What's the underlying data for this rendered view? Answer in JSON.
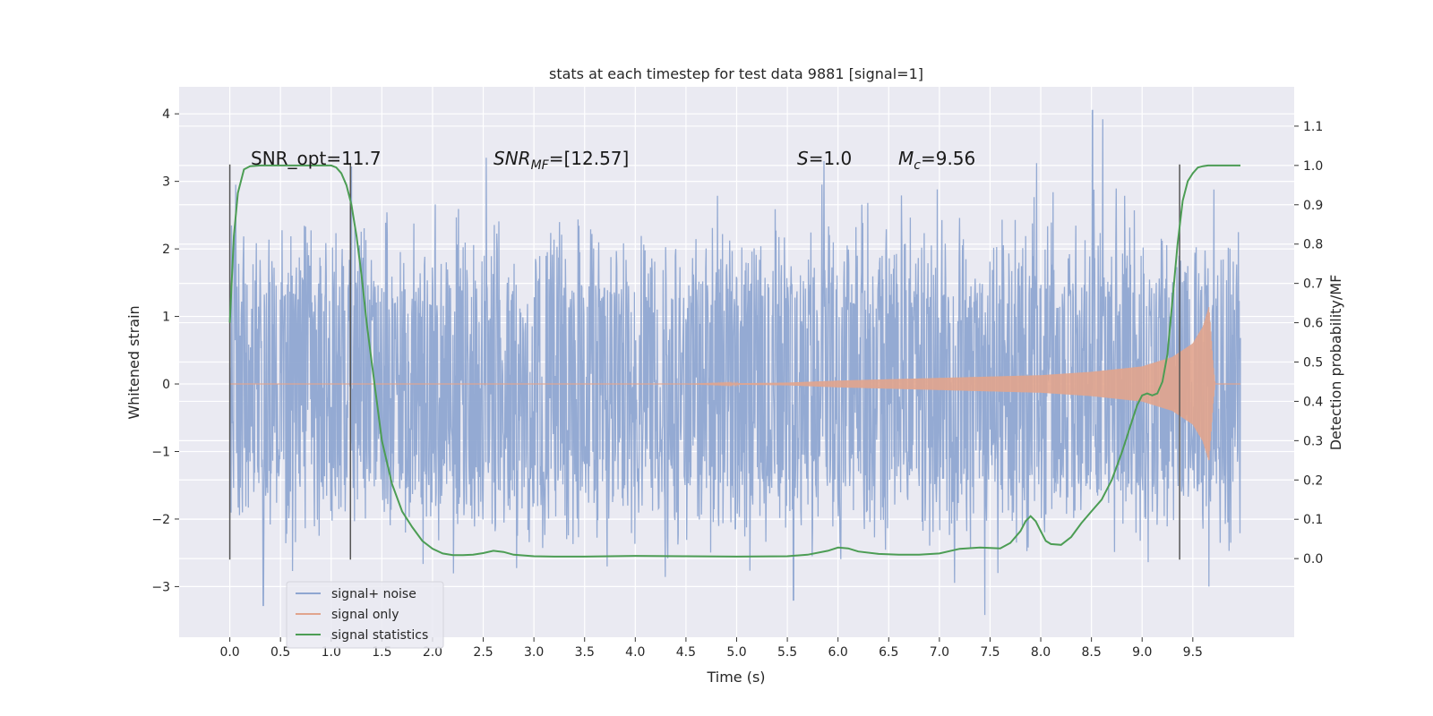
{
  "chart_data": {
    "type": "line",
    "title": "stats at each timestep for test data 9881 [signal=1]",
    "xlabel": "Time (s)",
    "ylabel_left": "Whitened strain",
    "ylabel_right": "Detection probability/MF",
    "xlim": [
      -0.5,
      10.5
    ],
    "ylim_left": [
      -3.75,
      4.4
    ],
    "ylim_right": [
      -0.2,
      1.2
    ],
    "x_ticks": [
      "0.0",
      "0.5",
      "1.0",
      "1.5",
      "2.0",
      "2.5",
      "3.0",
      "3.5",
      "4.0",
      "4.5",
      "5.0",
      "5.5",
      "6.0",
      "6.5",
      "7.0",
      "7.5",
      "8.0",
      "8.5",
      "9.0",
      "9.5"
    ],
    "x_tick_values": [
      0.0,
      0.5,
      1.0,
      1.5,
      2.0,
      2.5,
      3.0,
      3.5,
      4.0,
      4.5,
      5.0,
      5.5,
      6.0,
      6.5,
      7.0,
      7.5,
      8.0,
      8.5,
      9.0,
      9.5
    ],
    "y_left_ticks": [
      "−3",
      "−2",
      "−1",
      "0",
      "1",
      "2",
      "3",
      "4"
    ],
    "y_left_tick_values": [
      -3,
      -2,
      -1,
      0,
      1,
      2,
      3,
      4
    ],
    "y_right_ticks": [
      "0.0",
      "0.1",
      "0.2",
      "0.3",
      "0.4",
      "0.5",
      "0.6",
      "0.7",
      "0.8",
      "0.9",
      "1.0",
      "1.1"
    ],
    "y_right_tick_values": [
      0.0,
      0.1,
      0.2,
      0.3,
      0.4,
      0.5,
      0.6,
      0.7,
      0.8,
      0.9,
      1.0,
      1.1
    ],
    "grid": true,
    "legend_position": "lower-left",
    "annotations": {
      "snr_opt": "SNR_opt=11.7",
      "snr_mf_main": "SNR",
      "snr_mf_sub": "MF",
      "snr_mf_value": "=[12.57]",
      "s_main": "S",
      "s_value": "=1.0",
      "mc_main": "M",
      "mc_sub": "c",
      "mc_value": "=9.56"
    },
    "vertical_markers": [
      {
        "x": 0.0,
        "y_range": [
          -2.6,
          3.25
        ]
      },
      {
        "x": 1.19,
        "y_range": [
          -2.6,
          3.25
        ]
      },
      {
        "x": 9.37,
        "y_range": [
          -2.6,
          3.25
        ]
      }
    ],
    "series": [
      {
        "name": "signal+ noise",
        "color": "#8fa6d1",
        "kind": "noise",
        "x_range": [
          0.0,
          9.97
        ],
        "core_band": [
          -1.55,
          1.55
        ],
        "typical_peak_abs": 2.2,
        "notable_peaks": [
          {
            "x": 0.33,
            "y": -3.28
          },
          {
            "x": 1.2,
            "y": 3.22
          },
          {
            "x": 2.53,
            "y": 3.35
          },
          {
            "x": 5.56,
            "y": -3.2
          },
          {
            "x": 5.86,
            "y": 3.3
          },
          {
            "x": 7.45,
            "y": -3.42
          },
          {
            "x": 7.96,
            "y": 3.27
          },
          {
            "x": 8.51,
            "y": 4.05
          },
          {
            "x": 8.61,
            "y": 3.92
          },
          {
            "x": 9.66,
            "y": -3.0
          }
        ]
      },
      {
        "name": "signal only",
        "color": "#e1a48d",
        "kind": "chirp",
        "amplitude_envelope": [
          [
            0.0,
            0.0
          ],
          [
            4.5,
            0.0
          ],
          [
            5.5,
            0.02
          ],
          [
            6.0,
            0.05
          ],
          [
            7.0,
            0.09
          ],
          [
            8.0,
            0.13
          ],
          [
            8.5,
            0.18
          ],
          [
            9.0,
            0.26
          ],
          [
            9.3,
            0.4
          ],
          [
            9.5,
            0.6
          ],
          [
            9.6,
            0.85
          ],
          [
            9.66,
            1.15
          ],
          [
            9.7,
            0.3
          ],
          [
            9.72,
            0.0
          ],
          [
            9.97,
            0.0
          ]
        ]
      },
      {
        "name": "signal statistics",
        "color": "#4c9d54",
        "kind": "line",
        "axis": "right",
        "x": [
          0.0,
          0.04,
          0.08,
          0.14,
          0.2,
          0.3,
          0.5,
          0.7,
          0.9,
          1.0,
          1.05,
          1.1,
          1.15,
          1.2,
          1.25,
          1.3,
          1.35,
          1.4,
          1.45,
          1.5,
          1.6,
          1.7,
          1.8,
          1.9,
          2.0,
          2.1,
          2.2,
          2.3,
          2.4,
          2.5,
          2.6,
          2.7,
          2.8,
          3.0,
          3.2,
          3.5,
          4.0,
          4.5,
          5.0,
          5.5,
          5.7,
          5.9,
          6.0,
          6.1,
          6.2,
          6.4,
          6.6,
          6.8,
          7.0,
          7.2,
          7.4,
          7.6,
          7.7,
          7.8,
          7.85,
          7.9,
          7.95,
          8.0,
          8.05,
          8.1,
          8.2,
          8.3,
          8.4,
          8.5,
          8.6,
          8.7,
          8.8,
          8.9,
          8.95,
          9.0,
          9.05,
          9.1,
          9.15,
          9.2,
          9.25,
          9.3,
          9.35,
          9.4,
          9.45,
          9.5,
          9.55,
          9.6,
          9.65,
          9.7,
          9.8,
          9.9,
          9.97
        ],
        "y": [
          0.6,
          0.82,
          0.93,
          0.99,
          0.998,
          1.0,
          1.0,
          1.0,
          1.0,
          1.0,
          0.995,
          0.98,
          0.95,
          0.9,
          0.82,
          0.72,
          0.6,
          0.5,
          0.4,
          0.3,
          0.19,
          0.12,
          0.08,
          0.045,
          0.025,
          0.013,
          0.009,
          0.009,
          0.01,
          0.014,
          0.02,
          0.017,
          0.01,
          0.006,
          0.005,
          0.005,
          0.007,
          0.006,
          0.005,
          0.006,
          0.01,
          0.02,
          0.028,
          0.026,
          0.018,
          0.012,
          0.01,
          0.01,
          0.013,
          0.025,
          0.028,
          0.026,
          0.04,
          0.07,
          0.095,
          0.108,
          0.095,
          0.07,
          0.045,
          0.037,
          0.035,
          0.055,
          0.09,
          0.12,
          0.15,
          0.2,
          0.27,
          0.35,
          0.39,
          0.415,
          0.42,
          0.415,
          0.42,
          0.45,
          0.52,
          0.66,
          0.8,
          0.91,
          0.96,
          0.98,
          0.995,
          0.998,
          1.0,
          1.0,
          1.0,
          1.0,
          1.0
        ]
      }
    ]
  }
}
